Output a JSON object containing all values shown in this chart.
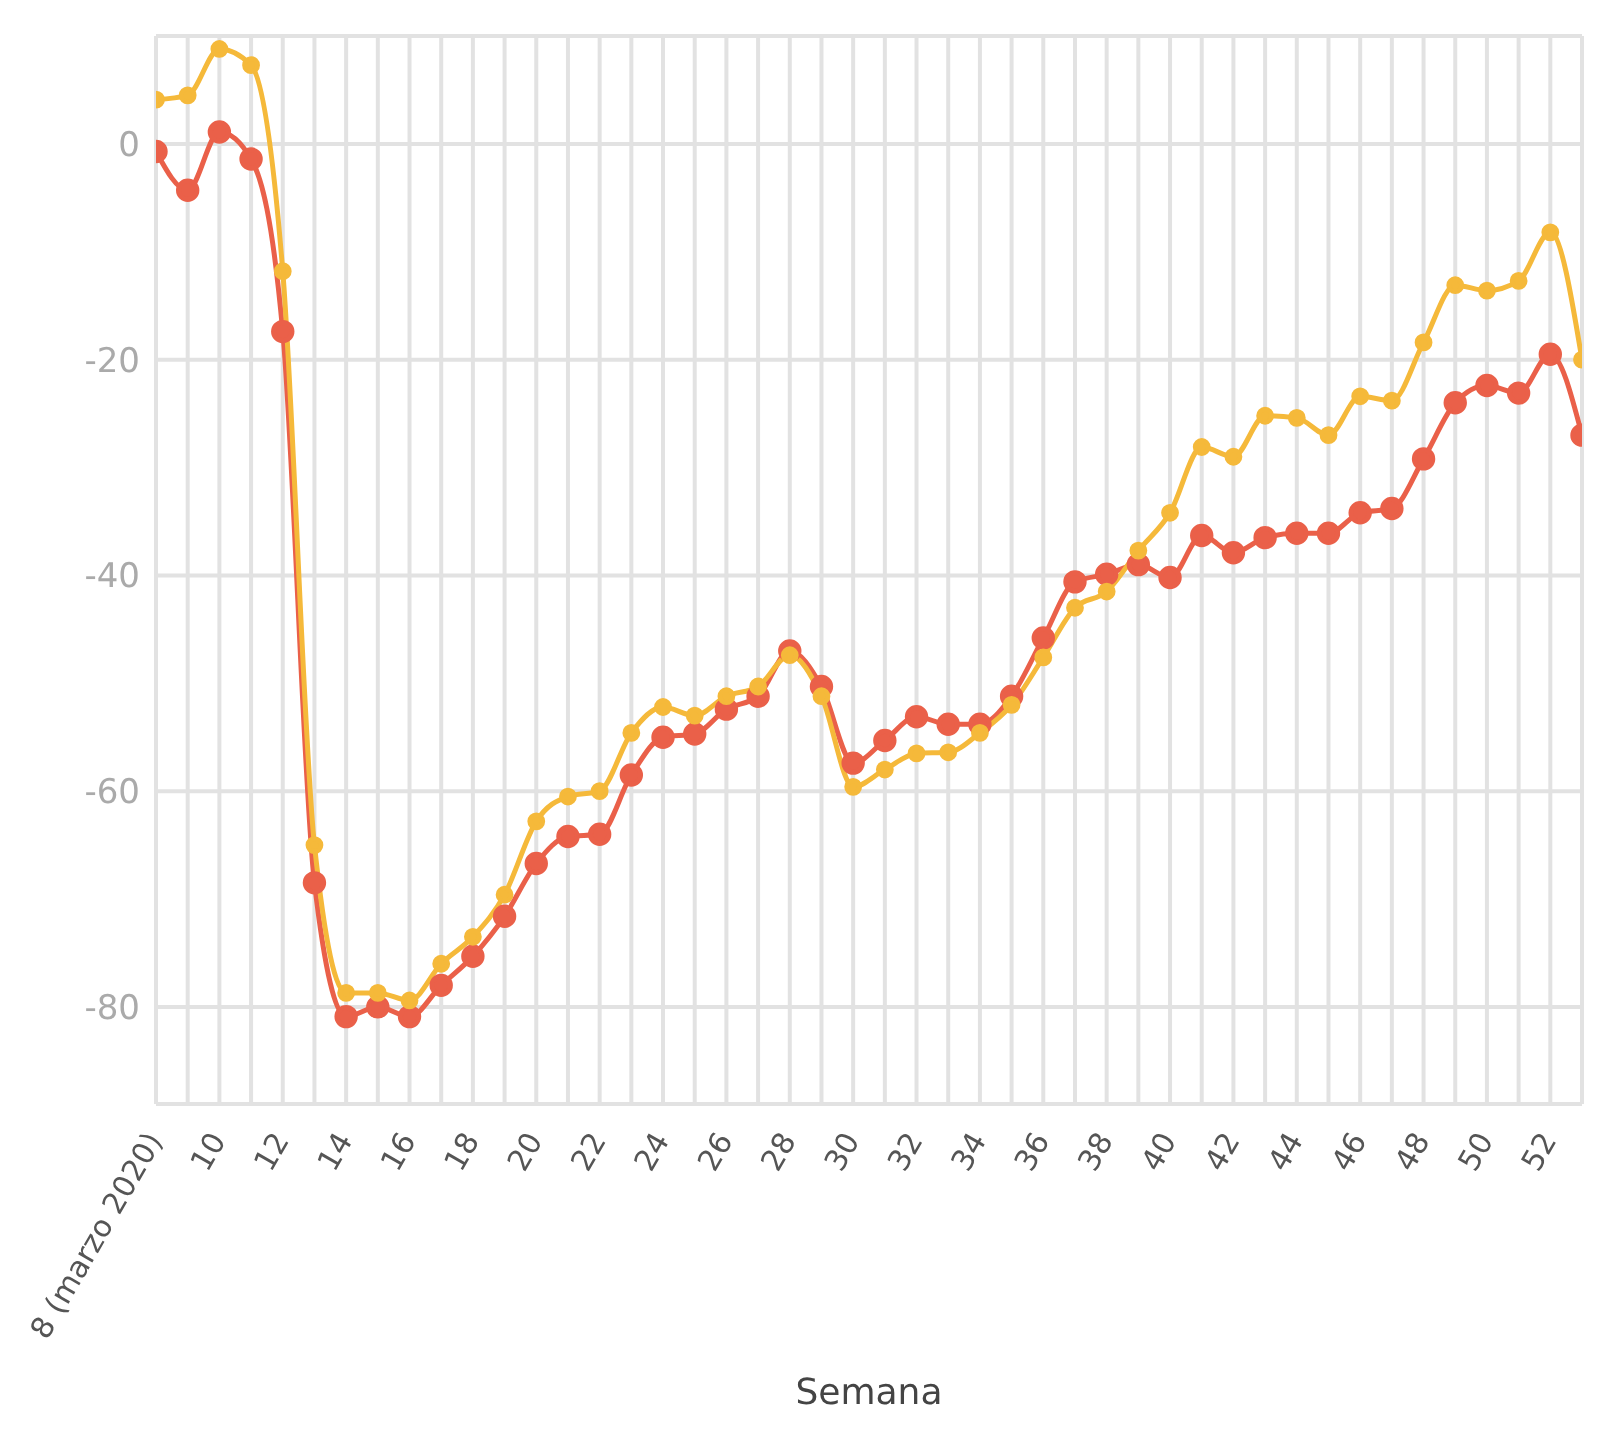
{
  "chart_data": {
    "type": "line",
    "xlabel": "Semana",
    "x": [
      8,
      9,
      10,
      11,
      12,
      13,
      14,
      15,
      16,
      17,
      18,
      19,
      20,
      21,
      22,
      23,
      24,
      25,
      26,
      27,
      28,
      29,
      30,
      31,
      32,
      33,
      34,
      35,
      36,
      37,
      38,
      39,
      40,
      41,
      42,
      43,
      44,
      45,
      46,
      47,
      48,
      49,
      50,
      51,
      52,
      53
    ],
    "series": [
      {
        "color": "#f5b93a",
        "values": [
          4.1,
          4.5,
          8.8,
          7.3,
          -11.8,
          -65,
          -78.7,
          -78.7,
          -79.4,
          -76,
          -73.5,
          -69.6,
          -62.8,
          -60.5,
          -60,
          -54.6,
          -52.2,
          -53,
          -51.2,
          -50.3,
          -47.4,
          -51.2,
          -59.6,
          -58,
          -56.5,
          -56.4,
          -54.6,
          -52,
          -47.6,
          -43,
          -41.5,
          -37.7,
          -34.2,
          -28.1,
          -29,
          -25.2,
          -25.4,
          -27,
          -23.4,
          -23.8,
          -18.4,
          -13.1,
          -13.6,
          -12.7,
          -8.2,
          -20
        ]
      },
      {
        "color": "#ea6049",
        "values": [
          -0.7,
          -4.3,
          1.1,
          -1.4,
          -17.4,
          -68.5,
          -80.9,
          -80,
          -80.9,
          -78,
          -75.3,
          -71.6,
          -66.7,
          -64.2,
          -64,
          -58.5,
          -55,
          -54.7,
          -52.4,
          -51.2,
          -47,
          -50.3,
          -57.4,
          -55.3,
          -53.1,
          -53.8,
          -53.8,
          -51.2,
          -45.8,
          -40.6,
          -39.9,
          -39,
          -40.2,
          -36.3,
          -37.9,
          -36.5,
          -36.1,
          -36.1,
          -34.2,
          -33.8,
          -29.2,
          -24,
          -22.4,
          -23.1,
          -19.5,
          -27
        ]
      }
    ],
    "xlim": [
      8,
      53
    ],
    "xticks": [
      {
        "value": 8,
        "label": "8 (marzo 2020)"
      },
      {
        "value": 9,
        "label": null
      },
      10,
      {
        "value": 11,
        "label": null
      },
      12,
      {
        "value": 13,
        "label": null
      },
      14,
      {
        "value": 15,
        "label": null
      },
      16,
      {
        "value": 17,
        "label": null
      },
      18,
      {
        "value": 19,
        "label": null
      },
      20,
      {
        "value": 21,
        "label": null
      },
      22,
      {
        "value": 23,
        "label": null
      },
      24,
      {
        "value": 25,
        "label": null
      },
      26,
      {
        "value": 27,
        "label": null
      },
      28,
      {
        "value": 29,
        "label": null
      },
      30,
      {
        "value": 31,
        "label": null
      },
      32,
      {
        "value": 33,
        "label": null
      },
      34,
      {
        "value": 35,
        "label": null
      },
      36,
      {
        "value": 37,
        "label": null
      },
      38,
      {
        "value": 39,
        "label": null
      },
      40,
      {
        "value": 41,
        "label": null
      },
      42,
      {
        "value": 43,
        "label": null
      },
      44,
      {
        "value": 45,
        "label": null
      },
      46,
      {
        "value": 47,
        "label": null
      },
      48,
      {
        "value": 49,
        "label": null
      },
      50,
      {
        "value": 51,
        "label": null
      },
      52,
      {
        "value": 53,
        "label": null
      }
    ],
    "ylim": [
      -89,
      10
    ],
    "yticks": [
      0,
      -20,
      -40,
      -60,
      -80
    ],
    "grid": true,
    "marker": "circle",
    "line_style": "solid"
  }
}
